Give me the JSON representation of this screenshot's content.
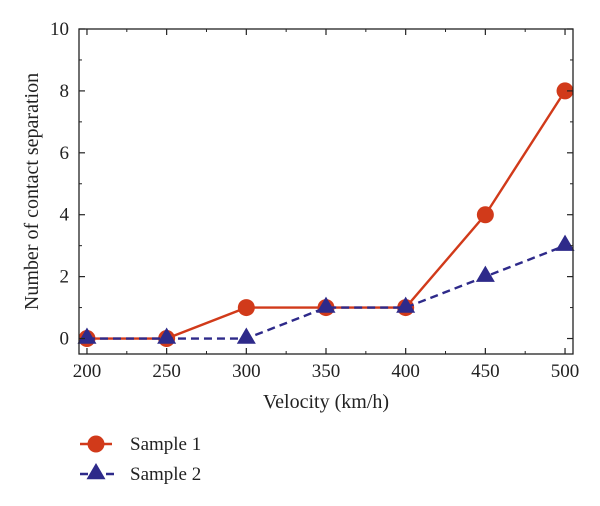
{
  "chart_data": {
    "type": "line",
    "title": "",
    "xlabel": "Velocity (km/h)",
    "ylabel": "Number of contact separation",
    "xlim": [
      195,
      505
    ],
    "ylim": [
      -0.5,
      10
    ],
    "xticks": [
      200,
      250,
      300,
      350,
      400,
      450,
      500
    ],
    "yticks": [
      0,
      2,
      4,
      6,
      8,
      10
    ],
    "grid": false,
    "legend_position": "bottom-left, below plot",
    "x": [
      200,
      250,
      300,
      350,
      400,
      450,
      500
    ],
    "series": [
      {
        "name": "Sample 1",
        "values": [
          0,
          0,
          1,
          1,
          1,
          4,
          8
        ],
        "color": "#d13a1a",
        "marker": "circle",
        "line_style": "solid"
      },
      {
        "name": "Sample 2",
        "values": [
          0,
          0,
          0,
          1,
          1,
          2,
          3
        ],
        "color": "#2e2a8a",
        "marker": "triangle",
        "line_style": "dashed"
      }
    ]
  }
}
